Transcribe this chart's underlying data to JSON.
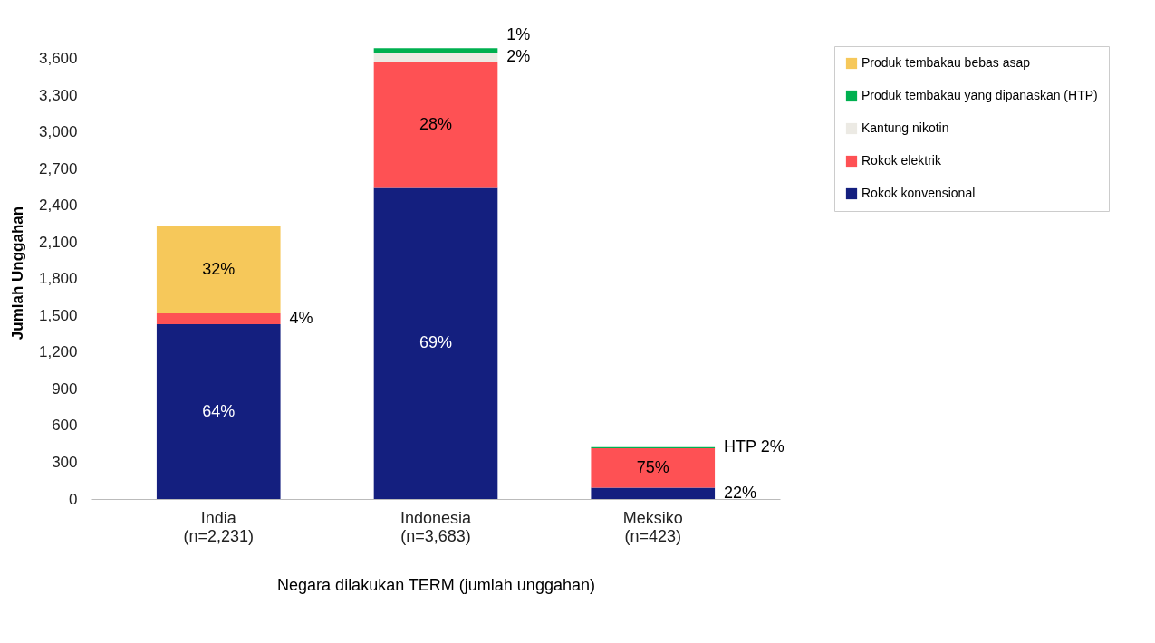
{
  "chart_data": {
    "type": "bar",
    "stacked": true,
    "xlabel": "Negara dilakukan TERM (jumlah unggahan)",
    "ylabel": "Jumlah Unggahan",
    "categories": [
      "India\n(n=2,231)",
      "Indonesia\n(n=3,683)",
      "Meksiko\n(n=423)"
    ],
    "series": [
      {
        "name": "Rokok konvensional",
        "color": "#141f7f",
        "values": [
          1428,
          2541,
          93
        ]
      },
      {
        "name": "Rokok elektrik",
        "color": "#fe5154",
        "values": [
          89,
          1031,
          322
        ]
      },
      {
        "name": "Kantung nikotin",
        "color": "#eceae4",
        "values": [
          0,
          74,
          0
        ]
      },
      {
        "name": "Produk tembakau yang dipanaskan (HTP)",
        "color": "#00b050",
        "values": [
          0,
          37,
          8
        ]
      },
      {
        "name": "Produk tembakau bebas asap",
        "color": "#f6c85a",
        "values": [
          714,
          0,
          0
        ]
      }
    ],
    "annotations": [
      "64%",
      "4%",
      "32%",
      "69%",
      "28%",
      "2%",
      "1%",
      "22%",
      "75%",
      "HTP 2%"
    ],
    "ylim": [
      0,
      3700
    ],
    "yticks": [
      0,
      {
        "value": 300,
        "label": "300"
      },
      {
        "value": 600,
        "label": "600"
      },
      {
        "value": 900,
        "label": "900"
      },
      {
        "value": 1200,
        "label": "1,200"
      },
      {
        "value": 1500,
        "label": "1,500"
      },
      {
        "value": 1800,
        "label": "1,800"
      },
      {
        "value": 2100,
        "label": "2,100"
      },
      {
        "value": 2400,
        "label": "2,400"
      },
      {
        "value": 2700,
        "label": "2,700"
      },
      {
        "value": 3000,
        "label": "3,000"
      },
      {
        "value": 3300,
        "label": "3,300"
      },
      {
        "value": 3600,
        "label": "3,600"
      }
    ],
    "grid": false,
    "legend": "right"
  }
}
